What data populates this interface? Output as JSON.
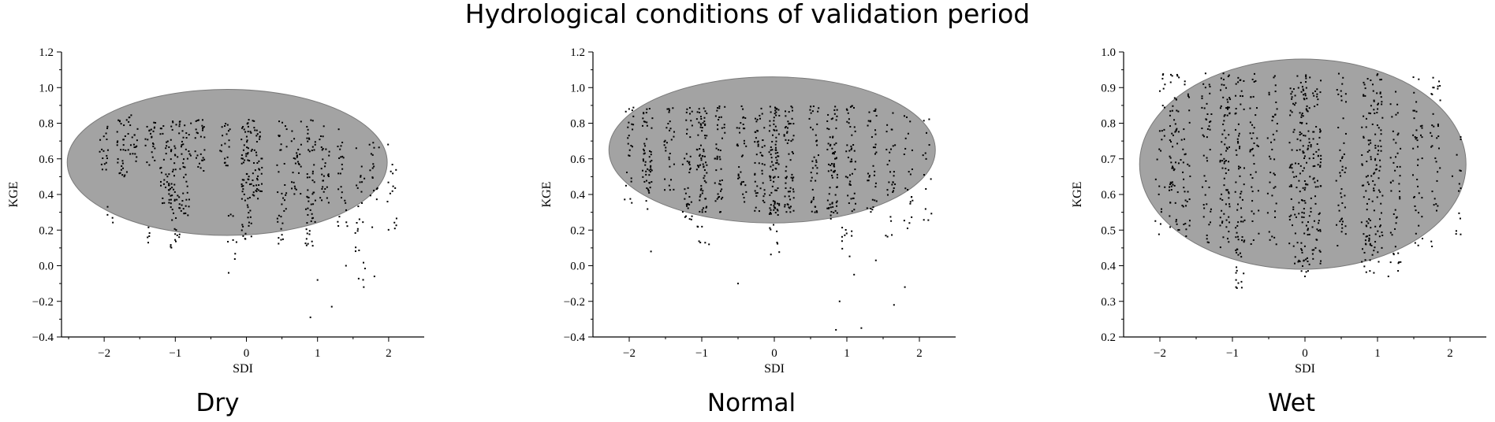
{
  "figure": {
    "title": "Hydrological conditions of validation period"
  },
  "colors": {
    "ellipse_fill": "#a3a3a3",
    "ellipse_stroke": "#7a7a7a",
    "points": "#000000"
  },
  "chart_data": [
    {
      "type": "scatter",
      "subtitle": "Dry",
      "xlabel": "SDI",
      "ylabel": "KGE",
      "xlim": [
        -2.6,
        2.5
      ],
      "ylim": [
        -0.4,
        1.2
      ],
      "xticks": [
        -2,
        -1,
        0,
        1,
        2
      ],
      "xtick_labels": [
        "−2",
        "−1",
        "0",
        "1",
        "2"
      ],
      "yticks": [
        -0.4,
        -0.2,
        0.0,
        0.2,
        0.4,
        0.6,
        0.8,
        1.0,
        1.2
      ],
      "ytick_labels": [
        "−0.4",
        "−0.2",
        "0.0",
        "0.2",
        "0.4",
        "0.6",
        "0.8",
        "1.0",
        "1.2"
      ],
      "ellipse": {
        "center": [
          -0.27,
          0.58
        ],
        "rx": 2.25,
        "ry": 0.41
      },
      "clusters": [
        {
          "x": -2.0,
          "ymin": 0.52,
          "ymax": 0.8,
          "n": 18
        },
        {
          "x": -1.9,
          "ymin": 0.18,
          "ymax": 0.35,
          "n": 4
        },
        {
          "x": -1.75,
          "ymin": 0.5,
          "ymax": 0.82,
          "n": 30
        },
        {
          "x": -1.6,
          "ymin": 0.55,
          "ymax": 0.85,
          "n": 22
        },
        {
          "x": -1.4,
          "ymin": 0.07,
          "ymax": 0.3,
          "n": 5
        },
        {
          "x": -1.35,
          "ymin": 0.55,
          "ymax": 0.82,
          "n": 24
        },
        {
          "x": -1.15,
          "ymin": 0.35,
          "ymax": 0.82,
          "n": 35
        },
        {
          "x": -1.0,
          "ymin": 0.1,
          "ymax": 0.82,
          "n": 60
        },
        {
          "x": -0.85,
          "ymin": 0.2,
          "ymax": 0.8,
          "n": 40
        },
        {
          "x": -0.65,
          "ymin": 0.5,
          "ymax": 0.82,
          "n": 28
        },
        {
          "x": -0.3,
          "ymin": 0.55,
          "ymax": 0.82,
          "n": 20
        },
        {
          "x": -0.2,
          "ymin": 0.02,
          "ymax": 0.3,
          "n": 8
        },
        {
          "x": 0.0,
          "ymin": 0.15,
          "ymax": 0.82,
          "n": 70
        },
        {
          "x": 0.15,
          "ymin": 0.35,
          "ymax": 0.82,
          "n": 45
        },
        {
          "x": 0.5,
          "ymin": 0.05,
          "ymax": 0.82,
          "n": 35
        },
        {
          "x": 0.7,
          "ymin": 0.4,
          "ymax": 0.82,
          "n": 28
        },
        {
          "x": 0.9,
          "ymin": 0.1,
          "ymax": 0.82,
          "n": 55
        },
        {
          "x": 1.1,
          "ymin": 0.35,
          "ymax": 0.8,
          "n": 30
        },
        {
          "x": 1.35,
          "ymin": 0.2,
          "ymax": 0.8,
          "n": 25
        },
        {
          "x": 1.6,
          "ymin": -0.1,
          "ymax": 0.75,
          "n": 25
        },
        {
          "x": 1.8,
          "ymin": 0.15,
          "ymax": 0.72,
          "n": 18
        },
        {
          "x": 2.05,
          "ymin": 0.2,
          "ymax": 0.72,
          "n": 16
        }
      ],
      "outliers": [
        {
          "x": -0.25,
          "y": -0.04
        },
        {
          "x": 0.9,
          "y": -0.29
        },
        {
          "x": 1.2,
          "y": -0.23
        },
        {
          "x": 1.0,
          "y": -0.08
        },
        {
          "x": 1.65,
          "y": -0.12
        },
        {
          "x": 1.8,
          "y": -0.06
        },
        {
          "x": 1.4,
          "y": 0.0
        }
      ]
    },
    {
      "type": "scatter",
      "subtitle": "Normal",
      "xlabel": "SDI",
      "ylabel": "KGE",
      "xlim": [
        -2.5,
        2.5
      ],
      "ylim": [
        -0.4,
        1.2
      ],
      "xticks": [
        -2,
        -1,
        0,
        1,
        2
      ],
      "xtick_labels": [
        "−2",
        "−1",
        "0",
        "1",
        "2"
      ],
      "yticks": [
        -0.4,
        -0.2,
        0.0,
        0.2,
        0.4,
        0.6,
        0.8,
        1.0,
        1.2
      ],
      "ytick_labels": [
        "−0.4",
        "−0.2",
        "0.0",
        "0.2",
        "0.4",
        "0.6",
        "0.8",
        "1.0",
        "1.2"
      ],
      "ellipse": {
        "center": [
          -0.03,
          0.65
        ],
        "rx": 2.25,
        "ry": 0.41
      },
      "clusters": [
        {
          "x": -2.0,
          "ymin": 0.35,
          "ymax": 0.9,
          "n": 25
        },
        {
          "x": -1.75,
          "ymin": 0.3,
          "ymax": 0.9,
          "n": 55
        },
        {
          "x": -1.45,
          "ymin": 0.4,
          "ymax": 0.9,
          "n": 30
        },
        {
          "x": -1.2,
          "ymin": 0.25,
          "ymax": 0.9,
          "n": 40
        },
        {
          "x": -1.0,
          "ymin": 0.3,
          "ymax": 0.9,
          "n": 70
        },
        {
          "x": -0.75,
          "ymin": 0.3,
          "ymax": 0.9,
          "n": 45
        },
        {
          "x": -0.45,
          "ymin": 0.35,
          "ymax": 0.9,
          "n": 35
        },
        {
          "x": -0.2,
          "ymin": 0.3,
          "ymax": 0.9,
          "n": 50
        },
        {
          "x": 0.0,
          "ymin": 0.25,
          "ymax": 0.9,
          "n": 90
        },
        {
          "x": 0.2,
          "ymin": 0.3,
          "ymax": 0.9,
          "n": 60
        },
        {
          "x": 0.55,
          "ymin": 0.3,
          "ymax": 0.9,
          "n": 40
        },
        {
          "x": 0.8,
          "ymin": 0.25,
          "ymax": 0.9,
          "n": 70
        },
        {
          "x": 1.05,
          "ymin": 0.3,
          "ymax": 0.9,
          "n": 45
        },
        {
          "x": 1.35,
          "ymin": 0.3,
          "ymax": 0.9,
          "n": 35
        },
        {
          "x": 1.6,
          "ymin": 0.15,
          "ymax": 0.9,
          "n": 30
        },
        {
          "x": 1.85,
          "ymin": 0.2,
          "ymax": 0.88,
          "n": 22
        },
        {
          "x": 2.1,
          "ymin": 0.22,
          "ymax": 0.9,
          "n": 14
        },
        {
          "x": 1.0,
          "ymin": 0.0,
          "ymax": 0.25,
          "n": 10
        },
        {
          "x": 0.0,
          "ymin": 0.05,
          "ymax": 0.25,
          "n": 8
        },
        {
          "x": -1.0,
          "ymin": 0.08,
          "ymax": 0.25,
          "n": 6
        }
      ],
      "outliers": [
        {
          "x": -1.7,
          "y": 0.08
        },
        {
          "x": -0.9,
          "y": 0.12
        },
        {
          "x": -0.5,
          "y": -0.1
        },
        {
          "x": 0.9,
          "y": -0.2
        },
        {
          "x": 0.85,
          "y": -0.36
        },
        {
          "x": 1.2,
          "y": -0.35
        },
        {
          "x": 1.65,
          "y": -0.22
        },
        {
          "x": 1.8,
          "y": -0.12
        },
        {
          "x": 1.1,
          "y": -0.05
        },
        {
          "x": 1.4,
          "y": 0.03
        }
      ]
    },
    {
      "type": "scatter",
      "subtitle": "Wet",
      "xlabel": "SDI",
      "ylabel": "KGE",
      "xlim": [
        -2.5,
        2.5
      ],
      "ylim": [
        0.2,
        1.0
      ],
      "xticks": [
        -2,
        -1,
        0,
        1,
        2
      ],
      "xtick_labels": [
        "−2",
        "−1",
        "0",
        "1",
        "2"
      ],
      "yticks": [
        0.2,
        0.3,
        0.4,
        0.5,
        0.6,
        0.7,
        0.8,
        0.9,
        1.0
      ],
      "ytick_labels": [
        "0.2",
        "0.3",
        "0.4",
        "0.5",
        "0.6",
        "0.7",
        "0.8",
        "0.9",
        "1.0"
      ],
      "ellipse": {
        "center": [
          -0.03,
          0.685
        ],
        "rx": 2.25,
        "ry": 0.295
      },
      "clusters": [
        {
          "x": -2.0,
          "ymin": 0.48,
          "ymax": 0.94,
          "n": 25
        },
        {
          "x": -1.8,
          "ymin": 0.5,
          "ymax": 0.94,
          "n": 60
        },
        {
          "x": -1.65,
          "ymin": 0.48,
          "ymax": 0.94,
          "n": 35
        },
        {
          "x": -1.35,
          "ymin": 0.45,
          "ymax": 0.94,
          "n": 45
        },
        {
          "x": -1.1,
          "ymin": 0.45,
          "ymax": 0.94,
          "n": 80
        },
        {
          "x": -0.9,
          "ymin": 0.33,
          "ymax": 0.94,
          "n": 70
        },
        {
          "x": -0.7,
          "ymin": 0.45,
          "ymax": 0.94,
          "n": 40
        },
        {
          "x": -0.45,
          "ymin": 0.45,
          "ymax": 0.94,
          "n": 40
        },
        {
          "x": -0.15,
          "ymin": 0.4,
          "ymax": 0.94,
          "n": 55
        },
        {
          "x": 0.0,
          "ymin": 0.38,
          "ymax": 0.94,
          "n": 100
        },
        {
          "x": 0.15,
          "ymin": 0.4,
          "ymax": 0.94,
          "n": 70
        },
        {
          "x": 0.5,
          "ymin": 0.45,
          "ymax": 0.94,
          "n": 45
        },
        {
          "x": 0.85,
          "ymin": 0.38,
          "ymax": 0.94,
          "n": 70
        },
        {
          "x": 1.0,
          "ymin": 0.4,
          "ymax": 0.94,
          "n": 75
        },
        {
          "x": 1.25,
          "ymin": 0.38,
          "ymax": 0.92,
          "n": 45
        },
        {
          "x": 1.55,
          "ymin": 0.45,
          "ymax": 0.93,
          "n": 40
        },
        {
          "x": 1.8,
          "ymin": 0.45,
          "ymax": 0.94,
          "n": 35
        },
        {
          "x": 2.1,
          "ymin": 0.47,
          "ymax": 0.84,
          "n": 14
        }
      ],
      "outliers": [
        {
          "x": -0.95,
          "y": 0.34
        },
        {
          "x": -0.95,
          "y": 0.36
        },
        {
          "x": -0.95,
          "y": 0.38
        },
        {
          "x": 0.0,
          "y": 0.37
        },
        {
          "x": 0.95,
          "y": 0.38
        },
        {
          "x": 1.15,
          "y": 0.37
        }
      ]
    }
  ]
}
